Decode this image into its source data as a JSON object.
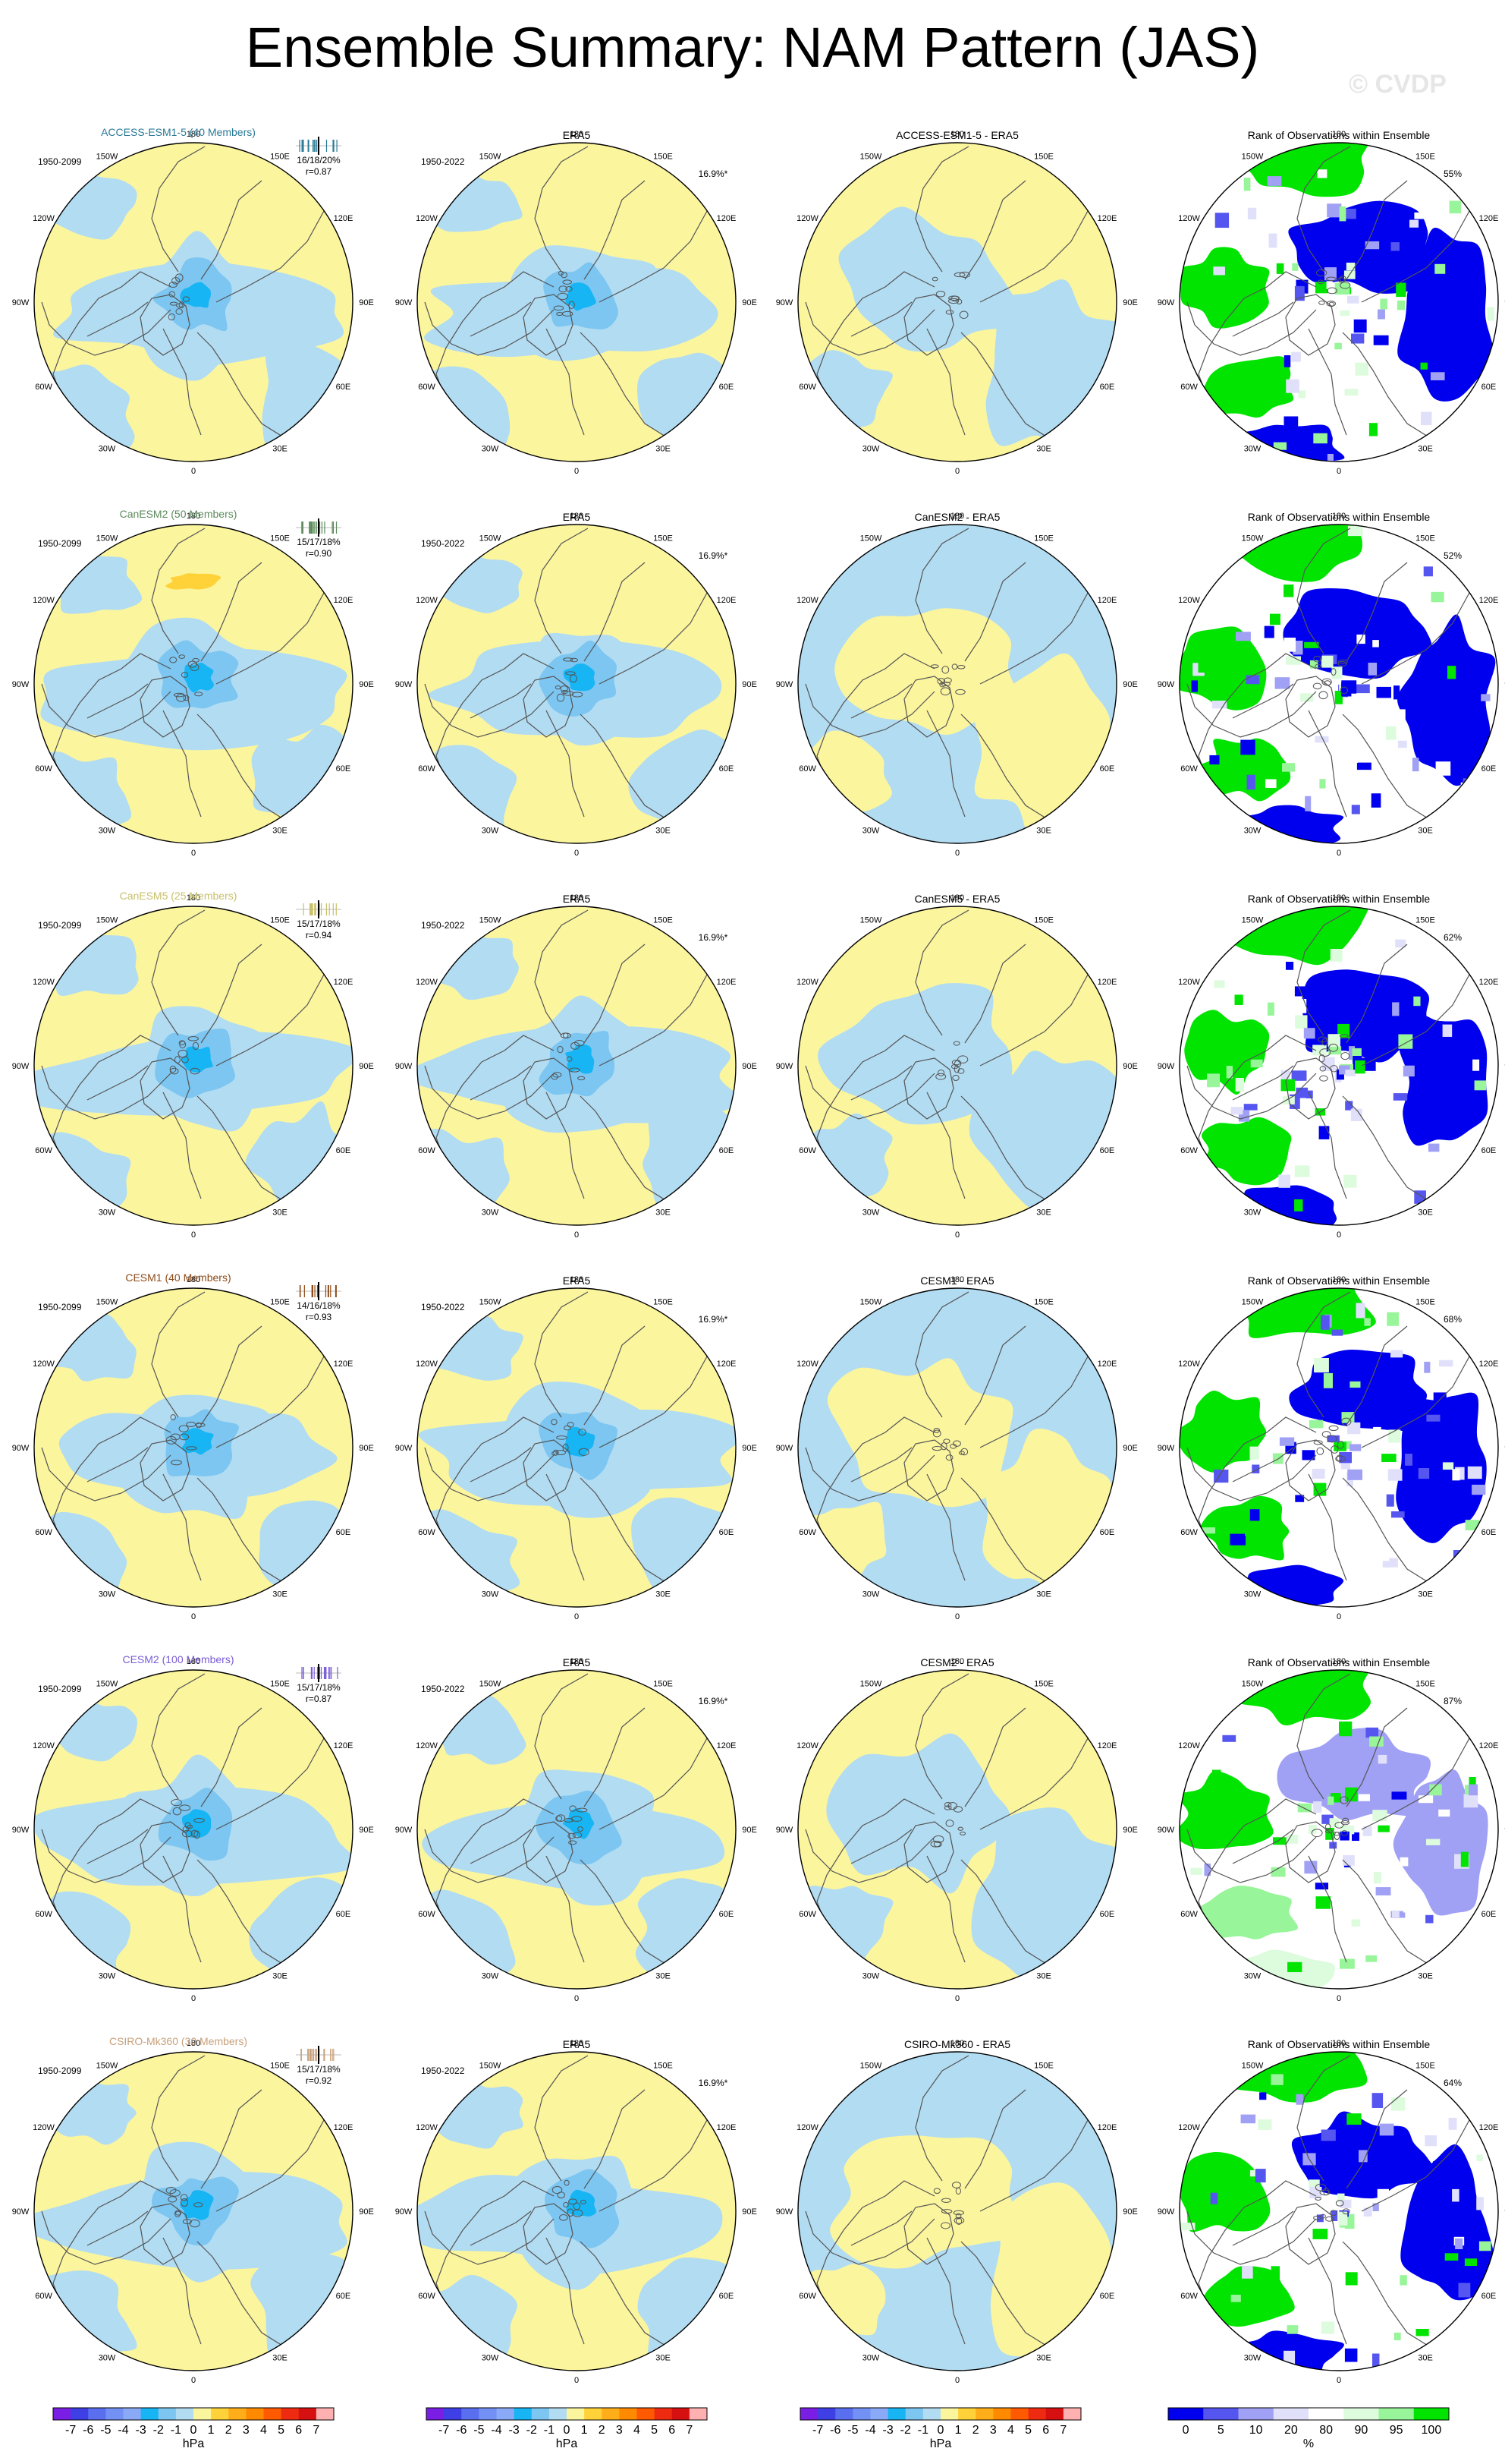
{
  "title": "Ensemble Summary: NAM Pattern (JAS)",
  "watermark": "© CVDP",
  "colors": {
    "positive_light": "#fbf59e",
    "positive_1": "#ffd23a",
    "negative_light": "#b2dcf2",
    "negative_2": "#7cc6f1",
    "negative_3": "#17b5f3",
    "rank_high": "#00e400",
    "rank_low": "#0000ee",
    "coast": "#555555"
  },
  "labels": {
    "era5": "ERA5",
    "rank": "Rank of Observations within Ensemble",
    "model_period": "1950-2099",
    "obs_period": "1950-2022",
    "obs_pct": "16.9%*"
  },
  "lon_labels": [
    "180",
    "150E",
    "120E",
    "90E",
    "60E",
    "30E",
    "0",
    "30W",
    "60W",
    "90W",
    "120W",
    "150W"
  ],
  "rows": [
    {
      "model": "ACCESS-ESM1-5 (40 Members)",
      "diff": "ACCESS-ESM1-5 - ERA5",
      "stats": "16/18/20%",
      "r": "r=0.87",
      "rank_pct": "55%",
      "color": "#2a7a96"
    },
    {
      "model": "CanESM2 (50 Members)",
      "diff": "CanESM2 - ERA5",
      "stats": "15/17/18%",
      "r": "r=0.90",
      "rank_pct": "52%",
      "color": "#5c8a5c"
    },
    {
      "model": "CanESM5 (25 Members)",
      "diff": "CanESM5 - ERA5",
      "stats": "15/17/18%",
      "r": "r=0.94",
      "rank_pct": "62%",
      "color": "#c8c06a"
    },
    {
      "model": "CESM1 (40 Members)",
      "diff": "CESM1 - ERA5",
      "stats": "14/16/18%",
      "r": "r=0.93",
      "rank_pct": "68%",
      "color": "#8c4a18"
    },
    {
      "model": "CESM2 (100 Members)",
      "diff": "CESM2 - ERA5",
      "stats": "15/17/18%",
      "r": "r=0.87",
      "rank_pct": "87%",
      "color": "#7a5cd6"
    },
    {
      "model": "CSIRO-Mk360 (30 Members)",
      "diff": "CSIRO-Mk360 - ERA5",
      "stats": "15/17/18%",
      "r": "r=0.92",
      "rank_pct": "64%",
      "color": "#c8a07a"
    }
  ],
  "colorbar_hpa": {
    "ticks": [
      "-7",
      "-6",
      "-5",
      "-4",
      "-3",
      "-2",
      "-1",
      "0",
      "1",
      "2",
      "3",
      "4",
      "5",
      "6",
      "7"
    ],
    "unit": "hPa",
    "colors": [
      "#7a1ee6",
      "#3f3fe6",
      "#5a6ef0",
      "#7390f5",
      "#8aaaf7",
      "#17b5f3",
      "#7cc6f1",
      "#b2dcf2",
      "#fbf59e",
      "#ffd23a",
      "#ffae1a",
      "#ff8a00",
      "#ff5a00",
      "#ee2a10",
      "#d61010",
      "#ffb0b0"
    ]
  },
  "colorbar_rank": {
    "ticks": [
      "0",
      "5",
      "10",
      "20",
      "80",
      "90",
      "95",
      "100"
    ],
    "unit": "%",
    "colors": [
      "#0000ee",
      "#5555f0",
      "#a0a0f5",
      "#e0e0fb",
      "#ffffff",
      "#ddfbdd",
      "#99f599",
      "#00e400"
    ]
  }
}
